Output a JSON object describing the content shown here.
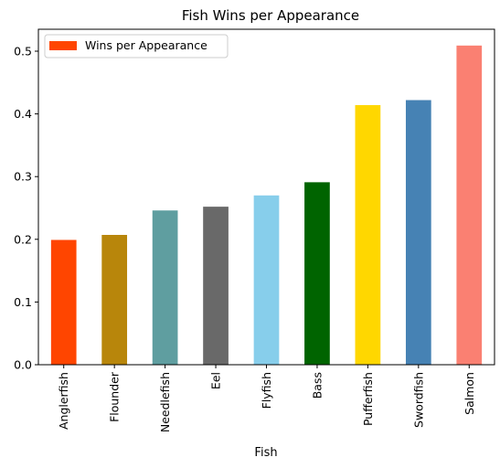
{
  "chart_data": {
    "type": "bar",
    "title": "Fish Wins per Appearance",
    "xlabel": "Fish",
    "ylabel": "",
    "categories": [
      "Anglerfish",
      "Flounder",
      "Needlefish",
      "Eel",
      "Flyfish",
      "Bass",
      "Pufferfish",
      "Swordfish",
      "Salmon"
    ],
    "series": [
      {
        "name": "Wins per Appearance",
        "values": [
          0.199,
          0.207,
          0.246,
          0.252,
          0.27,
          0.291,
          0.414,
          0.422,
          0.509
        ]
      }
    ],
    "colors": [
      "#FF4500",
      "#B8860B",
      "#5F9EA0",
      "#696969",
      "#87CEEB",
      "#006400",
      "#FFD700",
      "#4682B4",
      "#FA8072"
    ],
    "legend_color": "#FF4500",
    "ylim": [
      0,
      0.535
    ],
    "yticks": [
      0.0,
      0.1,
      0.2,
      0.3,
      0.4,
      0.5
    ],
    "ytick_labels": [
      "0.0",
      "0.1",
      "0.2",
      "0.3",
      "0.4",
      "0.5"
    ],
    "grid": false,
    "legend_position": "top-left"
  }
}
